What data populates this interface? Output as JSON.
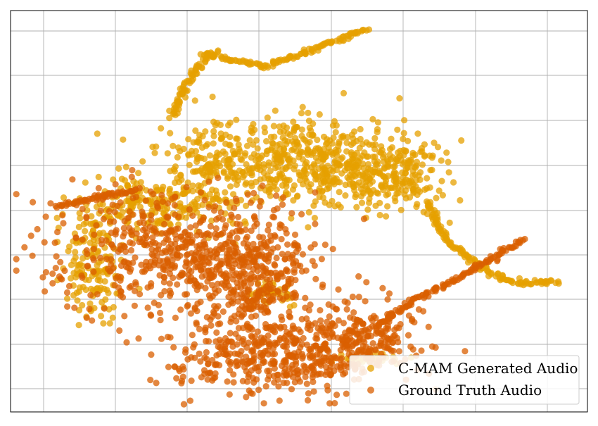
{
  "chart_data": {
    "type": "scatter",
    "title": "",
    "xlabel": "",
    "ylabel": "",
    "xlim": [
      0,
      100
    ],
    "ylim": [
      0,
      100
    ],
    "grid": true,
    "tick_labels_visible": false,
    "legend": {
      "placement": "bottom-right",
      "entries": [
        "C-MAM Generated Audio",
        "Ground Truth Audio"
      ]
    },
    "series": [
      {
        "name": "C-MAM Generated Audio",
        "color": "#E5A000",
        "point_count_approx": 1500,
        "regions": [
          {
            "shape": "arc",
            "x": [
              34,
              44,
              52,
              62
            ],
            "y": [
              89,
              86,
              90,
              95.5
            ],
            "spread": 0.6
          },
          {
            "shape": "arc",
            "x": [
              28.5,
              30.5,
              34.5,
              36
            ],
            "y": [
              74,
              82,
              89,
              90
            ],
            "spread": 0.8
          },
          {
            "shape": "blob",
            "cx": 37,
            "cy": 62,
            "rx": 11,
            "ry": 10,
            "n": 230
          },
          {
            "shape": "blob",
            "cx": 53,
            "cy": 62,
            "rx": 13,
            "ry": 11,
            "n": 360
          },
          {
            "shape": "blob",
            "cx": 67,
            "cy": 60,
            "rx": 9,
            "ry": 9,
            "n": 220
          },
          {
            "shape": "blob",
            "cx": 25,
            "cy": 52,
            "rx": 13,
            "ry": 8,
            "n": 220
          },
          {
            "shape": "blob",
            "cx": 14,
            "cy": 37,
            "rx": 5,
            "ry": 14,
            "n": 150
          },
          {
            "shape": "blob",
            "cx": 46,
            "cy": 30,
            "rx": 4,
            "ry": 4,
            "n": 40
          },
          {
            "shape": "blob",
            "cx": 62,
            "cy": 13,
            "rx": 6,
            "ry": 2,
            "n": 30
          },
          {
            "shape": "arc",
            "x": [
              72,
              76,
              80,
              85,
              89,
              95
            ],
            "y": [
              52,
              42,
              38,
              33,
              32,
              32.5
            ],
            "spread": 0.7
          }
        ]
      },
      {
        "name": "Ground Truth Audio",
        "color": "#D95F00",
        "point_count_approx": 1700,
        "regions": [
          {
            "shape": "blob",
            "cx": 28,
            "cy": 40,
            "rx": 20,
            "ry": 16,
            "n": 500
          },
          {
            "shape": "blob",
            "cx": 42,
            "cy": 34,
            "rx": 12,
            "ry": 14,
            "n": 350
          },
          {
            "shape": "blob",
            "cx": 45,
            "cy": 14,
            "rx": 17,
            "ry": 9,
            "n": 400
          },
          {
            "shape": "blob",
            "cx": 61,
            "cy": 18,
            "rx": 9,
            "ry": 9,
            "n": 220
          },
          {
            "shape": "arc",
            "x": [
              8,
              12,
              17,
              22
            ],
            "y": [
              51,
              52.5,
              54,
              55
            ],
            "spread": 0.6
          },
          {
            "shape": "arc",
            "x": [
              64,
              70,
              76,
              82,
              89
            ],
            "y": [
              22,
              28,
              32,
              37,
              43
            ],
            "spread": 0.6
          }
        ]
      }
    ]
  }
}
